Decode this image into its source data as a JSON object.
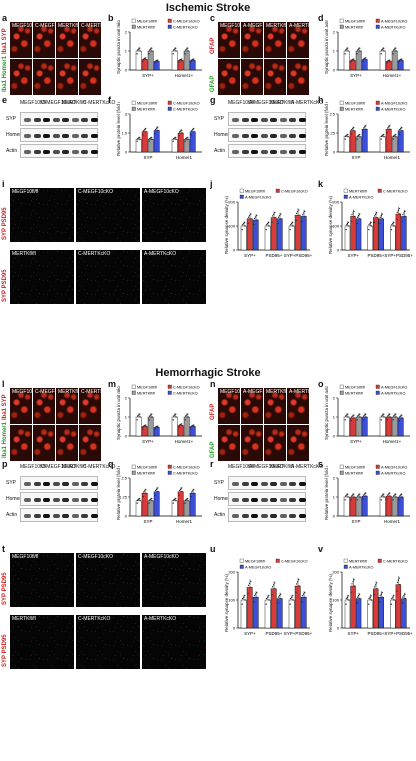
{
  "titles": {
    "ischemic": "Ischemic Stroke",
    "hemorrhagic": "Hemorrhagic Stroke"
  },
  "panel_letters": [
    "a",
    "b",
    "c",
    "d",
    "e",
    "f",
    "g",
    "h",
    "i",
    "j",
    "k",
    "l",
    "m",
    "n",
    "o",
    "p",
    "q",
    "r",
    "s",
    "t",
    "u",
    "v"
  ],
  "micro_labels": {
    "a": [
      "MEGF10fl/fl",
      "C-MEGF10cKO",
      "MERTKfl/fl",
      "C-MERTKcKO"
    ],
    "c": [
      "MEGF10fl/fl",
      "A-MEGF10cKO",
      "MERTKfl/fl",
      "A-MERTKcKO"
    ],
    "i_top": [
      "MEGF10fl/fl",
      "C-MEGF10cKO",
      "A-MEGF10cKO"
    ],
    "i_bot": [
      "MERTKfl/fl",
      "C-MERTKcKO",
      "A-MERTKcKO"
    ],
    "l": [
      "MEGF10fl/fl",
      "C-MEGF10cKO",
      "MERTKfl/fl",
      "C-MERTKcKO"
    ],
    "n": [
      "MEGF10fl/fl",
      "A-MEGF10cKO",
      "MERTKfl/fl",
      "A-MERTKcKO"
    ],
    "t_top": [
      "MEGF10fl/fl",
      "C-MEGF10cKO",
      "A-MEGF10cKO"
    ],
    "t_bot": [
      "MERTKfl/fl",
      "C-MERTKcKO",
      "A-MERTKcKO"
    ]
  },
  "side_labels": {
    "a_top": "Iba1 SYP",
    "a_bot": "Iba1 Homer1",
    "c_top": "GFAP",
    "c_bot": "GFAP",
    "i_top": "SYP PSD95",
    "i_bot": "SYP PSD95",
    "l_top": "Iba1 SYP",
    "l_bot": "Iba1 Homer1",
    "n_top": "GFAP",
    "n_bot": "GFAP",
    "t_top": "SYP PSD95",
    "t_bot": "SYP PSD95"
  },
  "blots": {
    "e": {
      "lanes": [
        "MEGF10fl/fl",
        "C-MEGF10cKO",
        "MERTKfl/fl",
        "C-MERTKcKO"
      ],
      "rows": [
        "SYP",
        "Homer1",
        "Actin"
      ]
    },
    "g": {
      "lanes": [
        "MEGF10fl/fl",
        "A-MEGF10cKO",
        "MERTKfl/fl",
        "A-MERTKcKO"
      ],
      "rows": [
        "SYP",
        "Homer1",
        "Actin"
      ]
    },
    "p": {
      "lanes": [
        "MEGF10fl/fl",
        "C-MEGF10cKO",
        "MERTKfl/fl",
        "C-MERTKcKO"
      ],
      "rows": [
        "SYP",
        "Homer1",
        "Actin"
      ]
    },
    "r": {
      "lanes": [
        "MEGF10fl/fl",
        "A-MEGF10cKO",
        "MERTKfl/fl",
        "A-MERTKcKO"
      ],
      "rows": [
        "SYP",
        "Homer1",
        "Actin"
      ]
    }
  },
  "colors": {
    "white": "#ffffff",
    "red": "#d93b3b",
    "blue": "#3b4fd9",
    "gray": "#9a9a9a",
    "pink": "#e8a0a0"
  },
  "chart_data": [
    {
      "panel": "b",
      "type": "bar",
      "ylabel": "Synaptic puncta in unit microglia/macrophage (AU)",
      "categories": [
        "SYP+",
        "Homer1+"
      ],
      "series": [
        {
          "name": "MEGF10fl/fl",
          "values": [
            1.0,
            1.0
          ]
        },
        {
          "name": "C-MEGF10cKO",
          "values": [
            0.55,
            0.5
          ]
        },
        {
          "name": "MERTKfl/fl",
          "values": [
            1.0,
            1.0
          ]
        },
        {
          "name": "C-MERTKcKO",
          "values": [
            0.45,
            0.5
          ]
        }
      ],
      "ylim": [
        0,
        2
      ]
    },
    {
      "panel": "d",
      "type": "bar",
      "ylabel": "Synaptic puncta in unit astrocyte",
      "categories": [
        "SYP+",
        "Homer1+"
      ],
      "series": [
        {
          "name": "MEGF10fl/fl",
          "values": [
            1.0,
            1.0
          ]
        },
        {
          "name": "A-MEGF10cKO",
          "values": [
            0.5,
            0.45
          ]
        },
        {
          "name": "MERTKfl/fl",
          "values": [
            1.0,
            1.0
          ]
        },
        {
          "name": "A-MERTKcKO",
          "values": [
            0.55,
            0.5
          ]
        }
      ],
      "ylim": [
        0,
        2
      ]
    },
    {
      "panel": "f",
      "type": "bar",
      "ylabel": "Relative protein level (fold change)",
      "categories": [
        "SYP",
        "Homer1"
      ],
      "series": [
        {
          "name": "MEGF10fl/fl",
          "values": [
            1.0,
            1.0
          ]
        },
        {
          "name": "C-MEGF10cKO",
          "values": [
            1.6,
            1.5
          ]
        },
        {
          "name": "MERTKfl/fl",
          "values": [
            1.0,
            1.0
          ]
        },
        {
          "name": "C-MERTKcKO",
          "values": [
            1.7,
            1.6
          ]
        }
      ],
      "ylim": [
        0,
        3
      ]
    },
    {
      "panel": "h",
      "type": "bar",
      "ylabel": "Relative protein level (fold change)",
      "categories": [
        "SYP",
        "Homer1"
      ],
      "series": [
        {
          "name": "MEGF10fl/fl",
          "values": [
            1.0,
            1.0
          ]
        },
        {
          "name": "A-MEGF10cKO",
          "values": [
            1.4,
            1.5
          ]
        },
        {
          "name": "MERTKfl/fl",
          "values": [
            1.0,
            1.0
          ]
        },
        {
          "name": "A-MERTKcKO",
          "values": [
            1.5,
            1.4
          ]
        }
      ],
      "ylim": [
        0,
        2.5
      ]
    },
    {
      "panel": "j",
      "type": "bar",
      "ylabel": "Relative synapse density (%)",
      "categories": [
        "SYP+",
        "PSD95+",
        "SYP+PSD95+"
      ],
      "series": [
        {
          "name": "MEGF10fl/fl",
          "values": [
            100,
            100,
            100
          ]
        },
        {
          "name": "C-MEGF10cKO",
          "values": [
            130,
            135,
            145
          ]
        },
        {
          "name": "A-MEGF10cKO",
          "values": [
            125,
            130,
            140
          ]
        }
      ],
      "ylim": [
        0,
        200
      ]
    },
    {
      "panel": "k",
      "type": "bar",
      "ylabel": "Relative synapse density (%)",
      "categories": [
        "SYP+",
        "PSD95+",
        "SYP+PSD95+"
      ],
      "series": [
        {
          "name": "MERTKfl/fl",
          "values": [
            100,
            100,
            100
          ]
        },
        {
          "name": "C-MERTKcKO",
          "values": [
            140,
            135,
            150
          ]
        },
        {
          "name": "A-MERTKcKO",
          "values": [
            130,
            130,
            140
          ]
        }
      ],
      "ylim": [
        0,
        200
      ]
    },
    {
      "panel": "m",
      "type": "bar",
      "ylabel": "Synaptic puncta in unit microglia/macrophage (AU)",
      "categories": [
        "SYP+",
        "Homer1+"
      ],
      "series": [
        {
          "name": "MEGF10fl/fl",
          "values": [
            1.0,
            1.0
          ]
        },
        {
          "name": "C-MEGF10cKO",
          "values": [
            0.5,
            0.55
          ]
        },
        {
          "name": "MERTKfl/fl",
          "values": [
            1.0,
            1.0
          ]
        },
        {
          "name": "C-MERTKcKO",
          "values": [
            0.45,
            0.5
          ]
        }
      ],
      "ylim": [
        0,
        2
      ]
    },
    {
      "panel": "o",
      "type": "bar",
      "ylabel": "Synaptic puncta in unit astrocyte (AU)",
      "categories": [
        "SYP+",
        "Homer1+"
      ],
      "series": [
        {
          "name": "MEGF10fl/fl",
          "values": [
            1.0,
            1.0
          ]
        },
        {
          "name": "A-MEGF10cKO",
          "values": [
            0.95,
            1.0
          ]
        },
        {
          "name": "MERTKfl/fl",
          "values": [
            1.0,
            1.0
          ]
        },
        {
          "name": "A-MERTKcKO",
          "values": [
            1.0,
            0.95
          ]
        }
      ],
      "ylim": [
        0,
        2
      ]
    },
    {
      "panel": "q",
      "type": "bar",
      "ylabel": "Relative protein level (fold change)",
      "categories": [
        "SYP",
        "Homer1"
      ],
      "series": [
        {
          "name": "MEGF10fl/fl",
          "values": [
            1.0,
            1.0
          ]
        },
        {
          "name": "C-MEGF10cKO",
          "values": [
            1.5,
            1.6
          ]
        },
        {
          "name": "MERTKfl/fl",
          "values": [
            1.0,
            1.0
          ]
        },
        {
          "name": "C-MERTKcKO",
          "values": [
            1.6,
            1.5
          ]
        }
      ],
      "ylim": [
        0,
        2.5
      ]
    },
    {
      "panel": "s",
      "type": "bar",
      "ylabel": "Relative protein level (fold change)",
      "categories": [
        "SYP",
        "Homer1"
      ],
      "series": [
        {
          "name": "MEGF10fl/fl",
          "values": [
            1.0,
            1.0
          ]
        },
        {
          "name": "A-MEGF10cKO",
          "values": [
            1.0,
            1.05
          ]
        },
        {
          "name": "MERTKfl/fl",
          "values": [
            1.0,
            1.0
          ]
        },
        {
          "name": "A-MERTKcKO",
          "values": [
            1.05,
            1.0
          ]
        }
      ],
      "ylim": [
        0,
        2
      ]
    },
    {
      "panel": "u",
      "type": "bar",
      "ylabel": "Relative synapse density (%)",
      "categories": [
        "SYP+",
        "PSD95+",
        "SYP+PSD95+"
      ],
      "series": [
        {
          "name": "MEGF10fl/fl",
          "values": [
            100,
            100,
            100
          ]
        },
        {
          "name": "C-MEGF10cKO",
          "values": [
            145,
            140,
            150
          ]
        },
        {
          "name": "A-MEGF10cKO",
          "values": [
            110,
            105,
            110
          ]
        }
      ],
      "ylim": [
        0,
        200
      ]
    },
    {
      "panel": "v",
      "type": "bar",
      "ylabel": "Relative synapse density (%)",
      "categories": [
        "SYP+",
        "PSD95+",
        "SYP+PSD95+"
      ],
      "series": [
        {
          "name": "MERTKfl/fl",
          "values": [
            100,
            100,
            100
          ]
        },
        {
          "name": "C-MERTKcKO",
          "values": [
            150,
            140,
            155
          ]
        },
        {
          "name": "A-MERTKcKO",
          "values": [
            105,
            110,
            105
          ]
        }
      ],
      "ylim": [
        0,
        200
      ]
    }
  ]
}
